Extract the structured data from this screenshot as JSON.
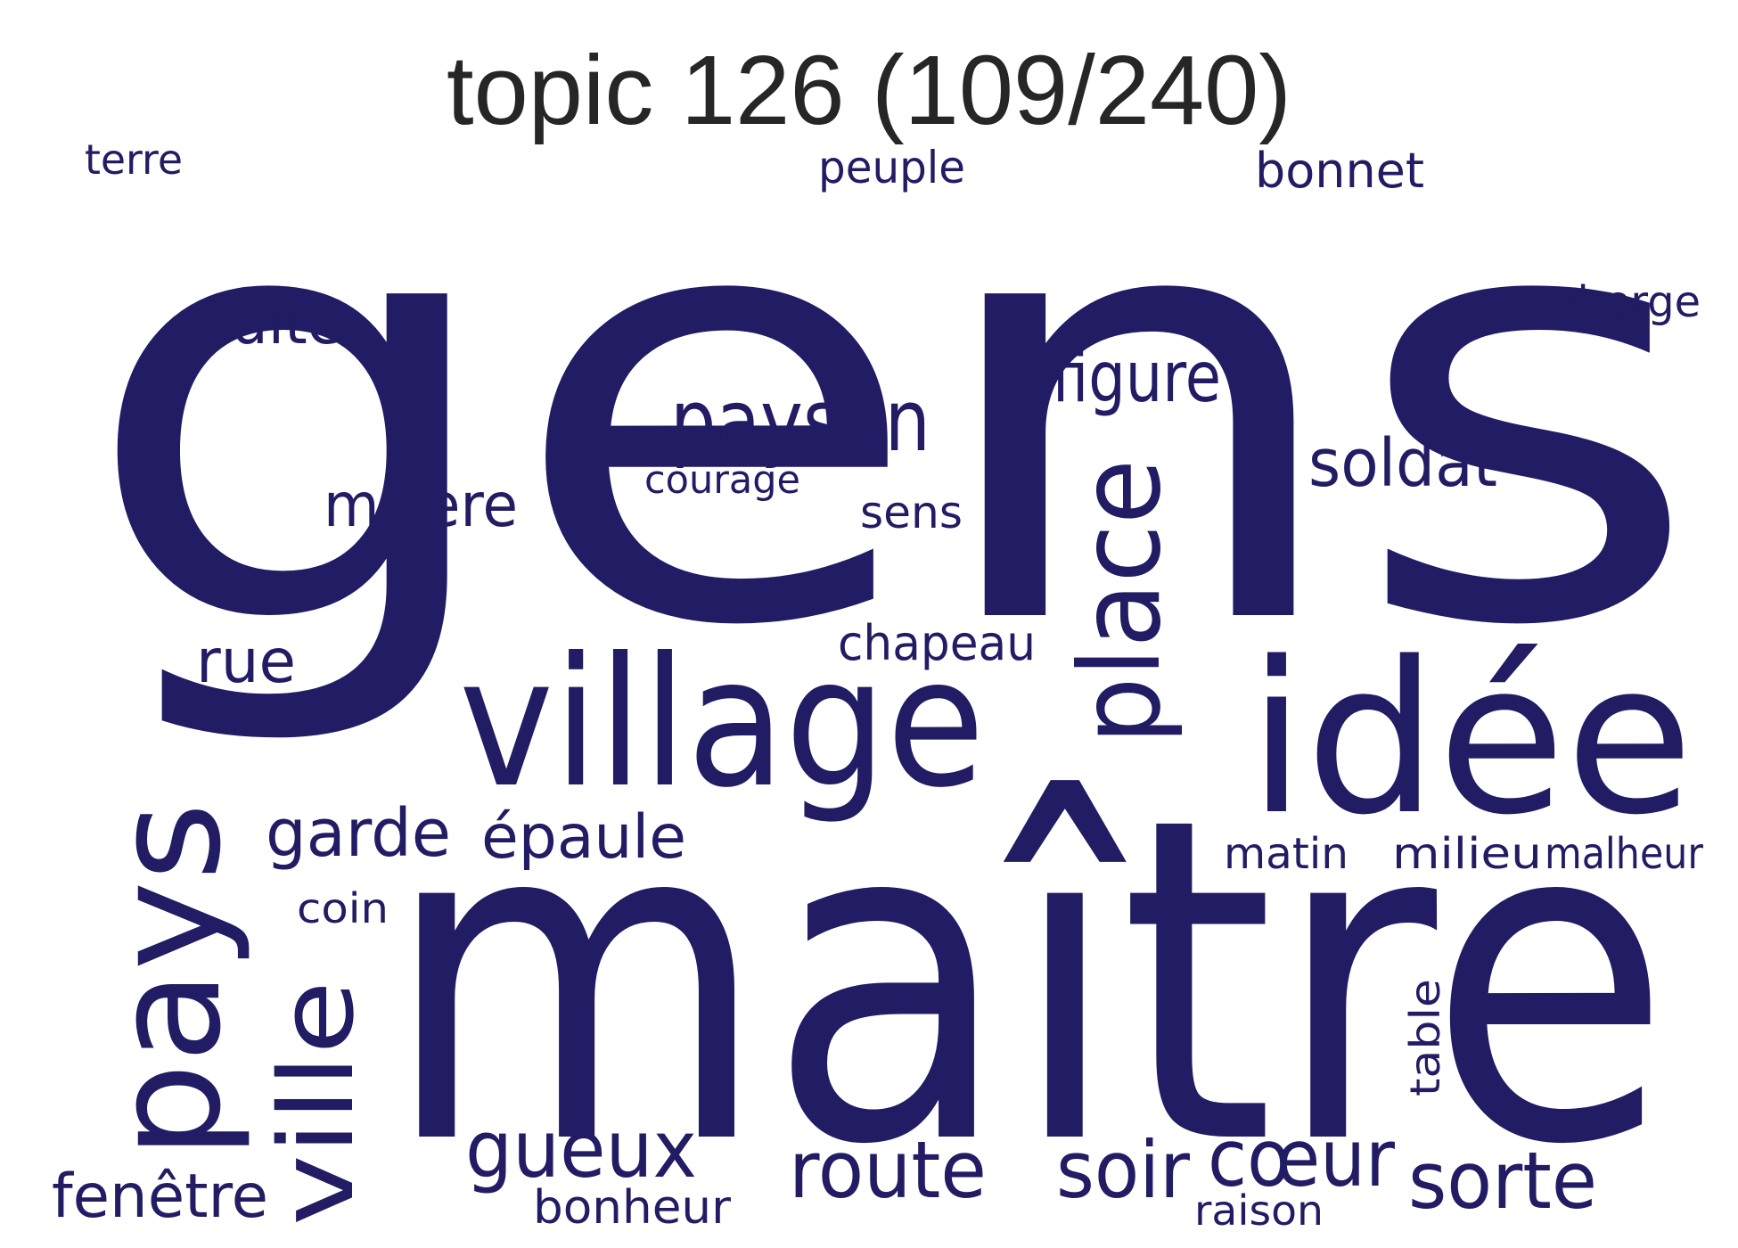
{
  "title": "topic 126 (109/240)",
  "color": "#211c63",
  "words": [
    "gens",
    "maître",
    "village",
    "idée",
    "pays",
    "place",
    "ville",
    "paysan",
    "route",
    "soir",
    "cœur",
    "sorte",
    "gueux",
    "figure",
    "soldat",
    "suite",
    "misère",
    "garde",
    "épaule",
    "rue",
    "fenêtre",
    "chapeau",
    "bonnet",
    "peuple",
    "auberge",
    "sens",
    "bonheur",
    "terre",
    "courage",
    "matin",
    "milieu",
    "malheur",
    "coin",
    "table",
    "raison"
  ]
}
